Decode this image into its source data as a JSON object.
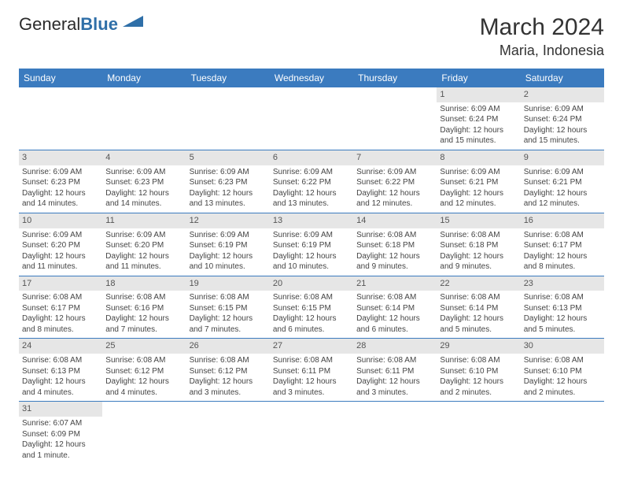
{
  "brand": {
    "part1": "General",
    "part2": "Blue",
    "triangle_color": "#2f6fa8"
  },
  "title": "March 2024",
  "location": "Maria, Indonesia",
  "colors": {
    "header_bg": "#3b7bbf",
    "header_text": "#ffffff",
    "daynum_bg": "#e6e6e6",
    "border": "#3b7bbf"
  },
  "weekdays": [
    "Sunday",
    "Monday",
    "Tuesday",
    "Wednesday",
    "Thursday",
    "Friday",
    "Saturday"
  ],
  "weeks": [
    [
      {
        "n": "",
        "sr": "",
        "ss": "",
        "dl": ""
      },
      {
        "n": "",
        "sr": "",
        "ss": "",
        "dl": ""
      },
      {
        "n": "",
        "sr": "",
        "ss": "",
        "dl": ""
      },
      {
        "n": "",
        "sr": "",
        "ss": "",
        "dl": ""
      },
      {
        "n": "",
        "sr": "",
        "ss": "",
        "dl": ""
      },
      {
        "n": "1",
        "sr": "Sunrise: 6:09 AM",
        "ss": "Sunset: 6:24 PM",
        "dl": "Daylight: 12 hours and 15 minutes."
      },
      {
        "n": "2",
        "sr": "Sunrise: 6:09 AM",
        "ss": "Sunset: 6:24 PM",
        "dl": "Daylight: 12 hours and 15 minutes."
      }
    ],
    [
      {
        "n": "3",
        "sr": "Sunrise: 6:09 AM",
        "ss": "Sunset: 6:23 PM",
        "dl": "Daylight: 12 hours and 14 minutes."
      },
      {
        "n": "4",
        "sr": "Sunrise: 6:09 AM",
        "ss": "Sunset: 6:23 PM",
        "dl": "Daylight: 12 hours and 14 minutes."
      },
      {
        "n": "5",
        "sr": "Sunrise: 6:09 AM",
        "ss": "Sunset: 6:23 PM",
        "dl": "Daylight: 12 hours and 13 minutes."
      },
      {
        "n": "6",
        "sr": "Sunrise: 6:09 AM",
        "ss": "Sunset: 6:22 PM",
        "dl": "Daylight: 12 hours and 13 minutes."
      },
      {
        "n": "7",
        "sr": "Sunrise: 6:09 AM",
        "ss": "Sunset: 6:22 PM",
        "dl": "Daylight: 12 hours and 12 minutes."
      },
      {
        "n": "8",
        "sr": "Sunrise: 6:09 AM",
        "ss": "Sunset: 6:21 PM",
        "dl": "Daylight: 12 hours and 12 minutes."
      },
      {
        "n": "9",
        "sr": "Sunrise: 6:09 AM",
        "ss": "Sunset: 6:21 PM",
        "dl": "Daylight: 12 hours and 12 minutes."
      }
    ],
    [
      {
        "n": "10",
        "sr": "Sunrise: 6:09 AM",
        "ss": "Sunset: 6:20 PM",
        "dl": "Daylight: 12 hours and 11 minutes."
      },
      {
        "n": "11",
        "sr": "Sunrise: 6:09 AM",
        "ss": "Sunset: 6:20 PM",
        "dl": "Daylight: 12 hours and 11 minutes."
      },
      {
        "n": "12",
        "sr": "Sunrise: 6:09 AM",
        "ss": "Sunset: 6:19 PM",
        "dl": "Daylight: 12 hours and 10 minutes."
      },
      {
        "n": "13",
        "sr": "Sunrise: 6:09 AM",
        "ss": "Sunset: 6:19 PM",
        "dl": "Daylight: 12 hours and 10 minutes."
      },
      {
        "n": "14",
        "sr": "Sunrise: 6:08 AM",
        "ss": "Sunset: 6:18 PM",
        "dl": "Daylight: 12 hours and 9 minutes."
      },
      {
        "n": "15",
        "sr": "Sunrise: 6:08 AM",
        "ss": "Sunset: 6:18 PM",
        "dl": "Daylight: 12 hours and 9 minutes."
      },
      {
        "n": "16",
        "sr": "Sunrise: 6:08 AM",
        "ss": "Sunset: 6:17 PM",
        "dl": "Daylight: 12 hours and 8 minutes."
      }
    ],
    [
      {
        "n": "17",
        "sr": "Sunrise: 6:08 AM",
        "ss": "Sunset: 6:17 PM",
        "dl": "Daylight: 12 hours and 8 minutes."
      },
      {
        "n": "18",
        "sr": "Sunrise: 6:08 AM",
        "ss": "Sunset: 6:16 PM",
        "dl": "Daylight: 12 hours and 7 minutes."
      },
      {
        "n": "19",
        "sr": "Sunrise: 6:08 AM",
        "ss": "Sunset: 6:15 PM",
        "dl": "Daylight: 12 hours and 7 minutes."
      },
      {
        "n": "20",
        "sr": "Sunrise: 6:08 AM",
        "ss": "Sunset: 6:15 PM",
        "dl": "Daylight: 12 hours and 6 minutes."
      },
      {
        "n": "21",
        "sr": "Sunrise: 6:08 AM",
        "ss": "Sunset: 6:14 PM",
        "dl": "Daylight: 12 hours and 6 minutes."
      },
      {
        "n": "22",
        "sr": "Sunrise: 6:08 AM",
        "ss": "Sunset: 6:14 PM",
        "dl": "Daylight: 12 hours and 5 minutes."
      },
      {
        "n": "23",
        "sr": "Sunrise: 6:08 AM",
        "ss": "Sunset: 6:13 PM",
        "dl": "Daylight: 12 hours and 5 minutes."
      }
    ],
    [
      {
        "n": "24",
        "sr": "Sunrise: 6:08 AM",
        "ss": "Sunset: 6:13 PM",
        "dl": "Daylight: 12 hours and 4 minutes."
      },
      {
        "n": "25",
        "sr": "Sunrise: 6:08 AM",
        "ss": "Sunset: 6:12 PM",
        "dl": "Daylight: 12 hours and 4 minutes."
      },
      {
        "n": "26",
        "sr": "Sunrise: 6:08 AM",
        "ss": "Sunset: 6:12 PM",
        "dl": "Daylight: 12 hours and 3 minutes."
      },
      {
        "n": "27",
        "sr": "Sunrise: 6:08 AM",
        "ss": "Sunset: 6:11 PM",
        "dl": "Daylight: 12 hours and 3 minutes."
      },
      {
        "n": "28",
        "sr": "Sunrise: 6:08 AM",
        "ss": "Sunset: 6:11 PM",
        "dl": "Daylight: 12 hours and 3 minutes."
      },
      {
        "n": "29",
        "sr": "Sunrise: 6:08 AM",
        "ss": "Sunset: 6:10 PM",
        "dl": "Daylight: 12 hours and 2 minutes."
      },
      {
        "n": "30",
        "sr": "Sunrise: 6:08 AM",
        "ss": "Sunset: 6:10 PM",
        "dl": "Daylight: 12 hours and 2 minutes."
      }
    ],
    [
      {
        "n": "31",
        "sr": "Sunrise: 6:07 AM",
        "ss": "Sunset: 6:09 PM",
        "dl": "Daylight: 12 hours and 1 minute."
      },
      {
        "n": "",
        "sr": "",
        "ss": "",
        "dl": ""
      },
      {
        "n": "",
        "sr": "",
        "ss": "",
        "dl": ""
      },
      {
        "n": "",
        "sr": "",
        "ss": "",
        "dl": ""
      },
      {
        "n": "",
        "sr": "",
        "ss": "",
        "dl": ""
      },
      {
        "n": "",
        "sr": "",
        "ss": "",
        "dl": ""
      },
      {
        "n": "",
        "sr": "",
        "ss": "",
        "dl": ""
      }
    ]
  ]
}
